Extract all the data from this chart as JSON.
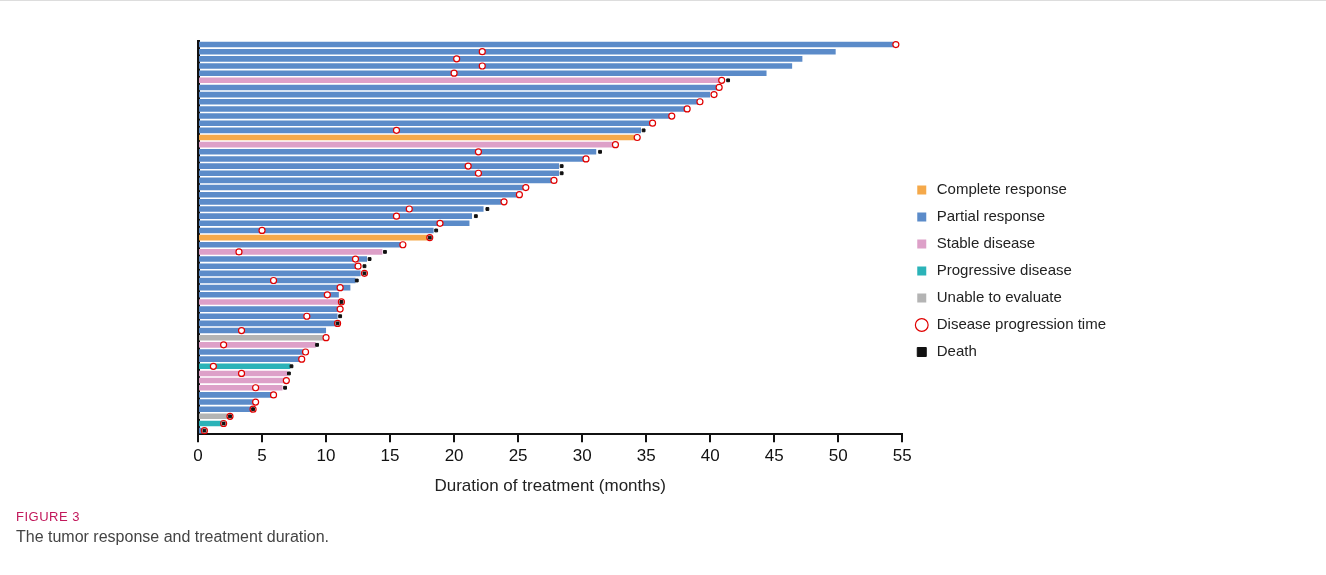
{
  "chart_data": {
    "type": "bar",
    "orientation": "horizontal",
    "stacked": true,
    "xlabel": "Duration of treatment (months)",
    "xlim": [
      0,
      55
    ],
    "xticks": [
      0,
      5,
      10,
      15,
      20,
      25,
      30,
      35,
      40,
      45,
      50,
      55
    ],
    "legend": "right",
    "tick_labels": "x",
    "categories": [
      null,
      null,
      null,
      null,
      null,
      null,
      null,
      null,
      null,
      null,
      null,
      null,
      null,
      null,
      null,
      null,
      null,
      null,
      null,
      null,
      null,
      null,
      null,
      null,
      null,
      null,
      null,
      null,
      null,
      null,
      null,
      null,
      null,
      null,
      null,
      null,
      null,
      null,
      null,
      null,
      null,
      null,
      null,
      null,
      null,
      null,
      null,
      null,
      null,
      null,
      null,
      null,
      null,
      null,
      null
    ],
    "series": [
      {
        "name": "Complete response",
        "color": "#f5a94a",
        "values": [
          null,
          null,
          null,
          null,
          null,
          null,
          null,
          null,
          null,
          null,
          null,
          null,
          null,
          34.1,
          null,
          null,
          null,
          null,
          null,
          null,
          null,
          null,
          null,
          null,
          null,
          null,
          null,
          17.9,
          null,
          null,
          null,
          null,
          null,
          null,
          null,
          null,
          null,
          null,
          null,
          null,
          null,
          null,
          null,
          null,
          null,
          null,
          null,
          null,
          null,
          null,
          null,
          null,
          null,
          null,
          null
        ]
      },
      {
        "name": "Partial response",
        "color": "#5b8bc9",
        "values": [
          54.3,
          49.8,
          47.2,
          46.4,
          44.4,
          null,
          40.5,
          40.0,
          39.1,
          38.1,
          36.9,
          35.3,
          34.6,
          null,
          null,
          31.1,
          30.2,
          28.2,
          28.2,
          27.6,
          25.4,
          24.9,
          23.7,
          22.3,
          21.4,
          21.2,
          18.4,
          null,
          15.8,
          null,
          13.2,
          12.7,
          12.7,
          12.3,
          11.9,
          11.0,
          null,
          10.9,
          10.9,
          10.7,
          10.0,
          null,
          null,
          8.2,
          7.9,
          null,
          null,
          null,
          null,
          5.8,
          4.3,
          4.2,
          null,
          null,
          0.3
        ]
      },
      {
        "name": "Stable disease",
        "color": "#dda0c8",
        "values": [
          null,
          null,
          null,
          null,
          null,
          40.8,
          null,
          null,
          null,
          null,
          null,
          null,
          null,
          null,
          32.4,
          null,
          null,
          null,
          null,
          null,
          null,
          null,
          null,
          null,
          null,
          null,
          null,
          null,
          null,
          14.4,
          null,
          null,
          null,
          null,
          null,
          null,
          11.0,
          null,
          null,
          null,
          null,
          null,
          9.2,
          null,
          null,
          null,
          7.0,
          6.8,
          6.6,
          null,
          null,
          null,
          null,
          null,
          null
        ]
      },
      {
        "name": "Progressive disease",
        "color": "#2bb3b8",
        "values": [
          null,
          null,
          null,
          null,
          null,
          null,
          null,
          null,
          null,
          null,
          null,
          null,
          null,
          null,
          null,
          null,
          null,
          null,
          null,
          null,
          null,
          null,
          null,
          null,
          null,
          null,
          null,
          null,
          null,
          null,
          null,
          null,
          null,
          null,
          null,
          null,
          null,
          null,
          null,
          null,
          null,
          null,
          null,
          null,
          null,
          7.2,
          null,
          null,
          null,
          null,
          null,
          null,
          null,
          1.9,
          null
        ]
      },
      {
        "name": "Unable to evaluate",
        "color": "#b4b4b4",
        "values": [
          null,
          null,
          null,
          null,
          null,
          null,
          null,
          null,
          null,
          null,
          null,
          null,
          null,
          null,
          null,
          null,
          null,
          null,
          null,
          null,
          null,
          null,
          null,
          null,
          null,
          null,
          null,
          null,
          null,
          null,
          null,
          null,
          null,
          null,
          null,
          null,
          null,
          null,
          null,
          null,
          null,
          9.8,
          null,
          null,
          null,
          null,
          null,
          null,
          null,
          null,
          null,
          null,
          2.3,
          null,
          null
        ]
      },
      {
        "name": "Disease progression time",
        "type": "scatter",
        "marker": "circle",
        "color": "#e00000",
        "values": [
          54.5,
          22.2,
          20.2,
          22.2,
          20.0,
          40.9,
          40.7,
          40.3,
          39.2,
          38.2,
          37.0,
          35.5,
          15.5,
          34.3,
          32.6,
          21.9,
          30.3,
          21.1,
          21.9,
          27.8,
          25.6,
          25.1,
          23.9,
          16.5,
          15.5,
          18.9,
          5.0,
          18.1,
          16.0,
          3.2,
          12.3,
          12.5,
          13.0,
          5.9,
          11.1,
          10.1,
          11.2,
          11.1,
          8.5,
          10.9,
          3.4,
          10.0,
          2.0,
          8.4,
          8.1,
          1.2,
          3.4,
          6.9,
          4.5,
          5.9,
          4.5,
          4.3,
          2.5,
          2.0,
          0.5
        ]
      },
      {
        "name": "Death",
        "type": "scatter",
        "marker": "square",
        "color": "#111111",
        "values": [
          null,
          null,
          null,
          null,
          null,
          41.4,
          null,
          null,
          null,
          null,
          null,
          null,
          34.8,
          null,
          null,
          31.4,
          null,
          28.4,
          28.4,
          null,
          null,
          null,
          null,
          22.6,
          21.7,
          null,
          18.6,
          18.1,
          null,
          14.6,
          13.4,
          13.0,
          13.0,
          12.4,
          null,
          null,
          11.2,
          null,
          11.1,
          10.9,
          null,
          null,
          9.3,
          null,
          null,
          7.3,
          7.1,
          null,
          6.8,
          null,
          null,
          4.3,
          2.5,
          2.0,
          0.5
        ]
      }
    ],
    "annotations": [
      "FIGURE 3",
      "The tumor response and treatment duration."
    ]
  }
}
